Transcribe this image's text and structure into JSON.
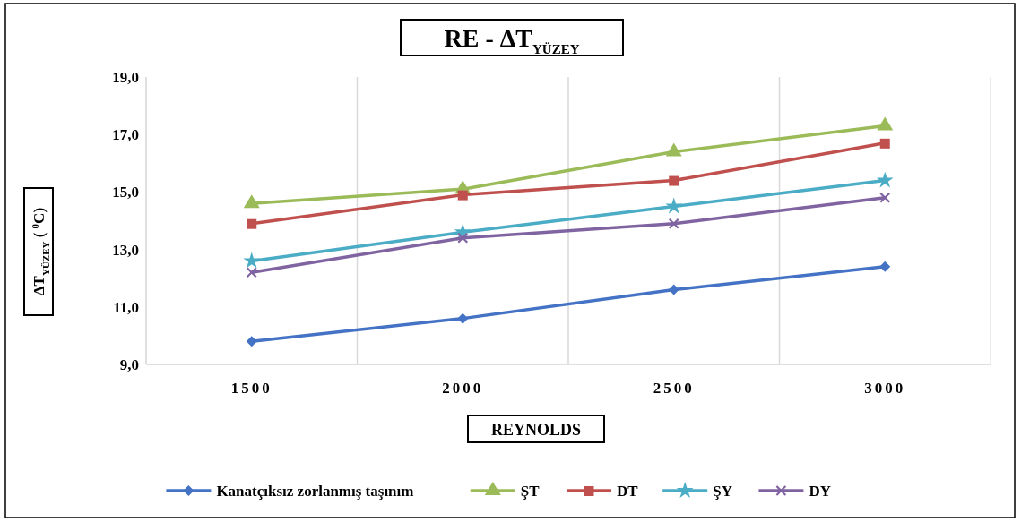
{
  "chart_data": {
    "type": "line",
    "title": "RE - ΔT$_{YÜZEY}$",
    "xlabel": "REYNOLDS",
    "ylabel": "ΔT$_{YÜZEY}$ ( $^{0}$C)",
    "categories": [
      "1500",
      "2000",
      "2500",
      "3000"
    ],
    "ylim": [
      9,
      19
    ],
    "yticks": [
      {
        "value": 9,
        "label": "9,0"
      },
      {
        "value": 11,
        "label": "11,0"
      },
      {
        "value": 13,
        "label": "13,0"
      },
      {
        "value": 15,
        "label": "15,0"
      },
      {
        "value": 17,
        "label": "17,0"
      },
      {
        "value": 19,
        "label": "19,0"
      }
    ],
    "grid": "x",
    "legend": "bottom",
    "series": [
      {
        "name": "Kanatçıksız zorlanmış taşınım",
        "color": "#4472c4",
        "marker": "diamond",
        "values": [
          9.8,
          10.6,
          11.6,
          12.4
        ]
      },
      {
        "name": "ŞT",
        "color": "#9bbb59",
        "marker": "triangle",
        "values": [
          14.6,
          15.1,
          16.4,
          17.3
        ]
      },
      {
        "name": "DT",
        "color": "#c0504d",
        "marker": "square",
        "values": [
          13.9,
          14.9,
          15.4,
          16.7
        ]
      },
      {
        "name": "ŞY",
        "color": "#4bacc6",
        "marker": "star",
        "values": [
          12.6,
          13.6,
          14.5,
          15.4
        ]
      },
      {
        "name": "DY",
        "color": "#8064a2",
        "marker": "cross",
        "values": [
          12.2,
          13.4,
          13.9,
          14.8
        ]
      }
    ]
  }
}
